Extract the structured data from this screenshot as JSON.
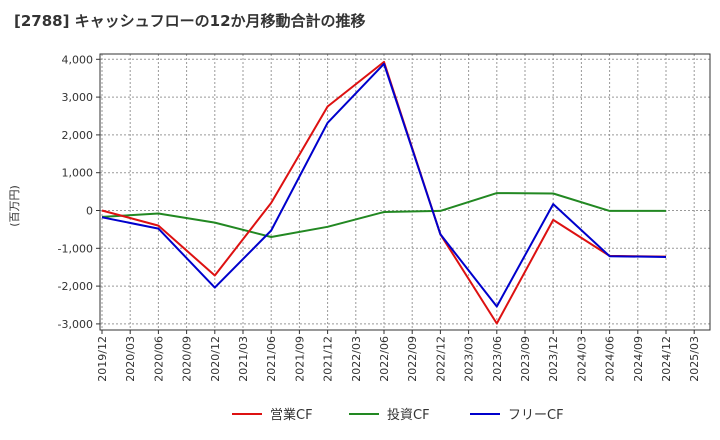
{
  "chart_data": {
    "type": "line",
    "title": "[2788]  キャッシュフローの12か月移動合計の推移",
    "ylabel": "(百万円)",
    "xlabel": "",
    "ylim": [
      -3100,
      4100
    ],
    "yticks": [
      4000,
      3000,
      2000,
      1000,
      0,
      -1000,
      -2000,
      -3000
    ],
    "ytick_labels": [
      "4,000",
      "3,000",
      "2,000",
      "1,000",
      "0",
      "-1,000",
      "-2,000",
      "-3,000"
    ],
    "categories": [
      "2019/12",
      "2020/03",
      "2020/06",
      "2020/09",
      "2020/12",
      "2021/03",
      "2021/06",
      "2021/09",
      "2021/12",
      "2022/03",
      "2022/06",
      "2022/09",
      "2022/12",
      "2023/03",
      "2023/06",
      "2023/09",
      "2023/12",
      "2024/03",
      "2024/06",
      "2024/09",
      "2024/12",
      "2025/03"
    ],
    "grid": true,
    "legend_position": "bottom",
    "series": [
      {
        "name": "営業CF",
        "color": "#dd1111",
        "points": [
          [
            0,
            0
          ],
          [
            2,
            -400
          ],
          [
            4,
            -1720
          ],
          [
            6,
            200
          ],
          [
            8,
            2750
          ],
          [
            10,
            3930
          ],
          [
            12,
            -630
          ],
          [
            14,
            -2990
          ],
          [
            16,
            -250
          ],
          [
            18,
            -1200
          ],
          [
            20,
            -1220
          ]
        ]
      },
      {
        "name": "投資CF",
        "color": "#228822",
        "points": [
          [
            0,
            -170
          ],
          [
            2,
            -80
          ],
          [
            4,
            -320
          ],
          [
            6,
            -700
          ],
          [
            8,
            -430
          ],
          [
            10,
            -40
          ],
          [
            12,
            -10
          ],
          [
            14,
            460
          ],
          [
            16,
            450
          ],
          [
            18,
            -10
          ],
          [
            20,
            -10
          ]
        ]
      },
      {
        "name": "フリーCF",
        "color": "#0000cc",
        "points": [
          [
            0,
            -180
          ],
          [
            2,
            -480
          ],
          [
            4,
            -2040
          ],
          [
            6,
            -530
          ],
          [
            8,
            2320
          ],
          [
            10,
            3880
          ],
          [
            12,
            -630
          ],
          [
            14,
            -2540
          ],
          [
            16,
            170
          ],
          [
            18,
            -1210
          ],
          [
            20,
            -1230
          ]
        ]
      }
    ]
  }
}
